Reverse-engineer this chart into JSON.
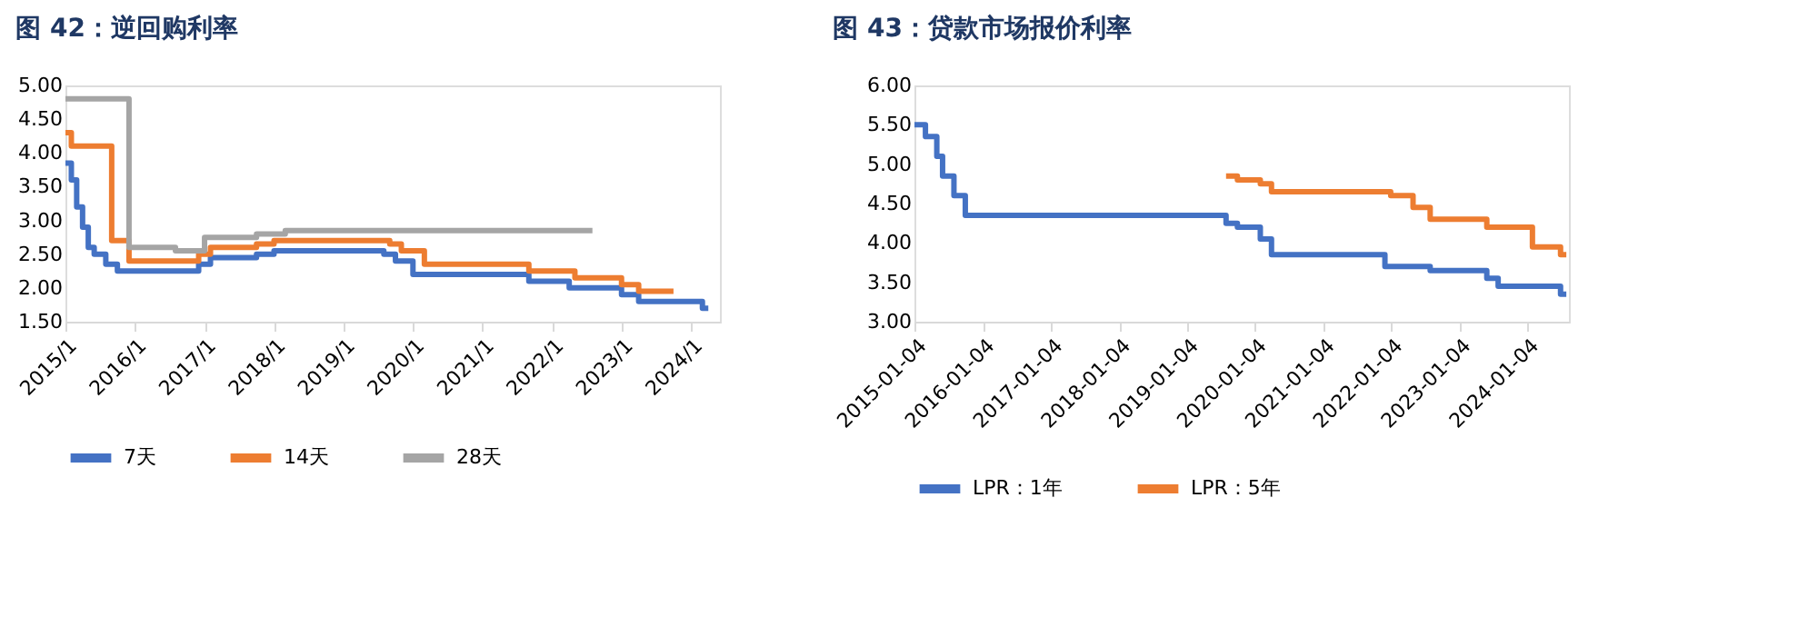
{
  "chart_data": [
    {
      "type": "step",
      "title": "图 42：逆回购利率",
      "xlim": [
        "2015-01-01",
        "2024-06-01"
      ],
      "xticks": [
        {
          "value": "2015-01-01",
          "label": "2015/1"
        },
        {
          "value": "2016-01-01",
          "label": "2016/1"
        },
        {
          "value": "2017-01-01",
          "label": "2017/1"
        },
        {
          "value": "2018-01-01",
          "label": "2018/1"
        },
        {
          "value": "2019-01-01",
          "label": "2019/1"
        },
        {
          "value": "2020-01-01",
          "label": "2020/1"
        },
        {
          "value": "2021-01-01",
          "label": "2021/1"
        },
        {
          "value": "2022-01-01",
          "label": "2022/1"
        },
        {
          "value": "2023-01-01",
          "label": "2023/1"
        },
        {
          "value": "2024-01-01",
          "label": "2024/1"
        }
      ],
      "ylim": [
        1.5,
        5.0
      ],
      "yticks": [
        {
          "value": 1.5,
          "label": "1.50"
        },
        {
          "value": 2.0,
          "label": "2.00"
        },
        {
          "value": 2.5,
          "label": "2.50"
        },
        {
          "value": 3.0,
          "label": "3.00"
        },
        {
          "value": 3.5,
          "label": "3.50"
        },
        {
          "value": 4.0,
          "label": "4.00"
        },
        {
          "value": 4.5,
          "label": "4.50"
        },
        {
          "value": 5.0,
          "label": "5.00"
        }
      ],
      "grid": false,
      "legend": "bottom",
      "line_style": "solid",
      "marker": "none",
      "series": [
        {
          "name": "7天",
          "color": "#4472c4",
          "x": [
            "2015-01",
            "2015-02",
            "2015-03",
            "2015-04",
            "2015-05",
            "2015-06",
            "2015-08",
            "2015-10",
            "2016-12",
            "2017-02",
            "2017-10",
            "2018-01",
            "2019-08",
            "2019-10",
            "2020-01",
            "2021-09",
            "2022-04",
            "2023-01",
            "2023-04",
            "2024-03",
            "2024-04"
          ],
          "values": [
            3.85,
            3.6,
            3.2,
            2.9,
            2.6,
            2.5,
            2.35,
            2.25,
            2.35,
            2.45,
            2.5,
            2.55,
            2.5,
            2.4,
            2.2,
            2.1,
            2.0,
            1.9,
            1.8,
            1.7,
            1.7
          ]
        },
        {
          "name": "14天",
          "color": "#ed7d31",
          "x": [
            "2015-01",
            "2015-02",
            "2015-09",
            "2015-12",
            "2016-12",
            "2017-02",
            "2017-10",
            "2018-01",
            "2019-09",
            "2019-11",
            "2020-03",
            "2021-09",
            "2022-05",
            "2022-10",
            "2023-01",
            "2023-04",
            "2023-10"
          ],
          "values": [
            4.3,
            4.1,
            2.7,
            2.4,
            2.5,
            2.6,
            2.65,
            2.7,
            2.65,
            2.55,
            2.35,
            2.25,
            2.15,
            2.15,
            2.05,
            1.95,
            1.95
          ]
        },
        {
          "name": "28天",
          "color": "#a5a5a5",
          "x": [
            "2015-01",
            "2015-12",
            "2016-08",
            "2017-01",
            "2017-10",
            "2018-03",
            "2022-08"
          ],
          "values": [
            4.8,
            2.6,
            2.55,
            2.75,
            2.8,
            2.85,
            2.85
          ]
        }
      ]
    },
    {
      "type": "step",
      "title": "图 43：贷款市场报价利率",
      "xlim": [
        "2015-01-01",
        "2024-08-15"
      ],
      "xticks": [
        {
          "value": "2015-01-04",
          "label": "2015-01-04"
        },
        {
          "value": "2016-01-04",
          "label": "2016-01-04"
        },
        {
          "value": "2017-01-04",
          "label": "2017-01-04"
        },
        {
          "value": "2018-01-04",
          "label": "2018-01-04"
        },
        {
          "value": "2019-01-04",
          "label": "2019-01-04"
        },
        {
          "value": "2020-01-04",
          "label": "2020-01-04"
        },
        {
          "value": "2021-01-04",
          "label": "2021-01-04"
        },
        {
          "value": "2022-01-04",
          "label": "2022-01-04"
        },
        {
          "value": "2023-01-04",
          "label": "2023-01-04"
        },
        {
          "value": "2024-01-04",
          "label": "2024-01-04"
        }
      ],
      "ylim": [
        3.0,
        6.0
      ],
      "yticks": [
        {
          "value": 3.0,
          "label": "3.00"
        },
        {
          "value": 3.5,
          "label": "3.50"
        },
        {
          "value": 4.0,
          "label": "4.00"
        },
        {
          "value": 4.5,
          "label": "4.50"
        },
        {
          "value": 5.0,
          "label": "5.00"
        },
        {
          "value": 5.5,
          "label": "5.50"
        },
        {
          "value": 6.0,
          "label": "6.00"
        }
      ],
      "grid": false,
      "legend": "bottom",
      "line_style": "solid",
      "marker": "none",
      "series": [
        {
          "name": "LPR：1年",
          "color": "#4472c4",
          "x": [
            "2015-01",
            "2015-03",
            "2015-05",
            "2015-06",
            "2015-08",
            "2015-10",
            "2019-08",
            "2019-10",
            "2020-02",
            "2020-04",
            "2021-12",
            "2022-08",
            "2023-06",
            "2023-08",
            "2024-07",
            "2024-08"
          ],
          "values": [
            5.5,
            5.35,
            5.1,
            4.85,
            4.6,
            4.35,
            4.25,
            4.2,
            4.05,
            3.85,
            3.7,
            3.65,
            3.55,
            3.45,
            3.35,
            3.35
          ]
        },
        {
          "name": "LPR：5年",
          "color": "#ed7d31",
          "x": [
            "2019-08",
            "2019-10",
            "2020-02",
            "2020-04",
            "2022-01",
            "2022-05",
            "2022-08",
            "2023-06",
            "2024-02",
            "2024-07",
            "2024-08"
          ],
          "values": [
            4.85,
            4.8,
            4.75,
            4.65,
            4.6,
            4.45,
            4.3,
            4.2,
            3.95,
            3.85,
            3.85
          ]
        }
      ]
    }
  ]
}
